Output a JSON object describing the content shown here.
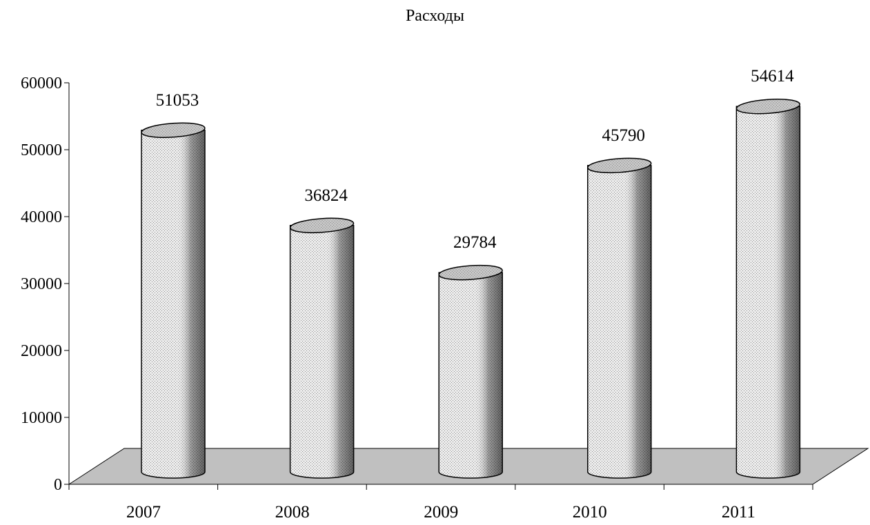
{
  "chart_data": {
    "type": "bar",
    "title": "Расходы",
    "xlabel": "",
    "ylabel": "",
    "categories": [
      "2007",
      "2008",
      "2009",
      "2010",
      "2011"
    ],
    "series": [
      {
        "values": [
          51053,
          36824,
          29784,
          45790,
          54614
        ]
      }
    ],
    "data_labels": [
      "51053",
      "36824",
      "29784",
      "45790",
      "54614"
    ],
    "y_ticks": [
      0,
      10000,
      20000,
      30000,
      40000,
      50000,
      60000
    ],
    "y_tick_labels": [
      "0",
      "10000",
      "20000",
      "30000",
      "40000",
      "50000",
      "60000"
    ],
    "ylim": [
      0,
      60000
    ],
    "grid": false,
    "legend": "none",
    "style": "3d-cylinder",
    "colors": {
      "bar": "#d4d4d4",
      "bar_top": "#c4c4c4",
      "floor": "#c0c0c0",
      "axis": "#000000"
    }
  }
}
